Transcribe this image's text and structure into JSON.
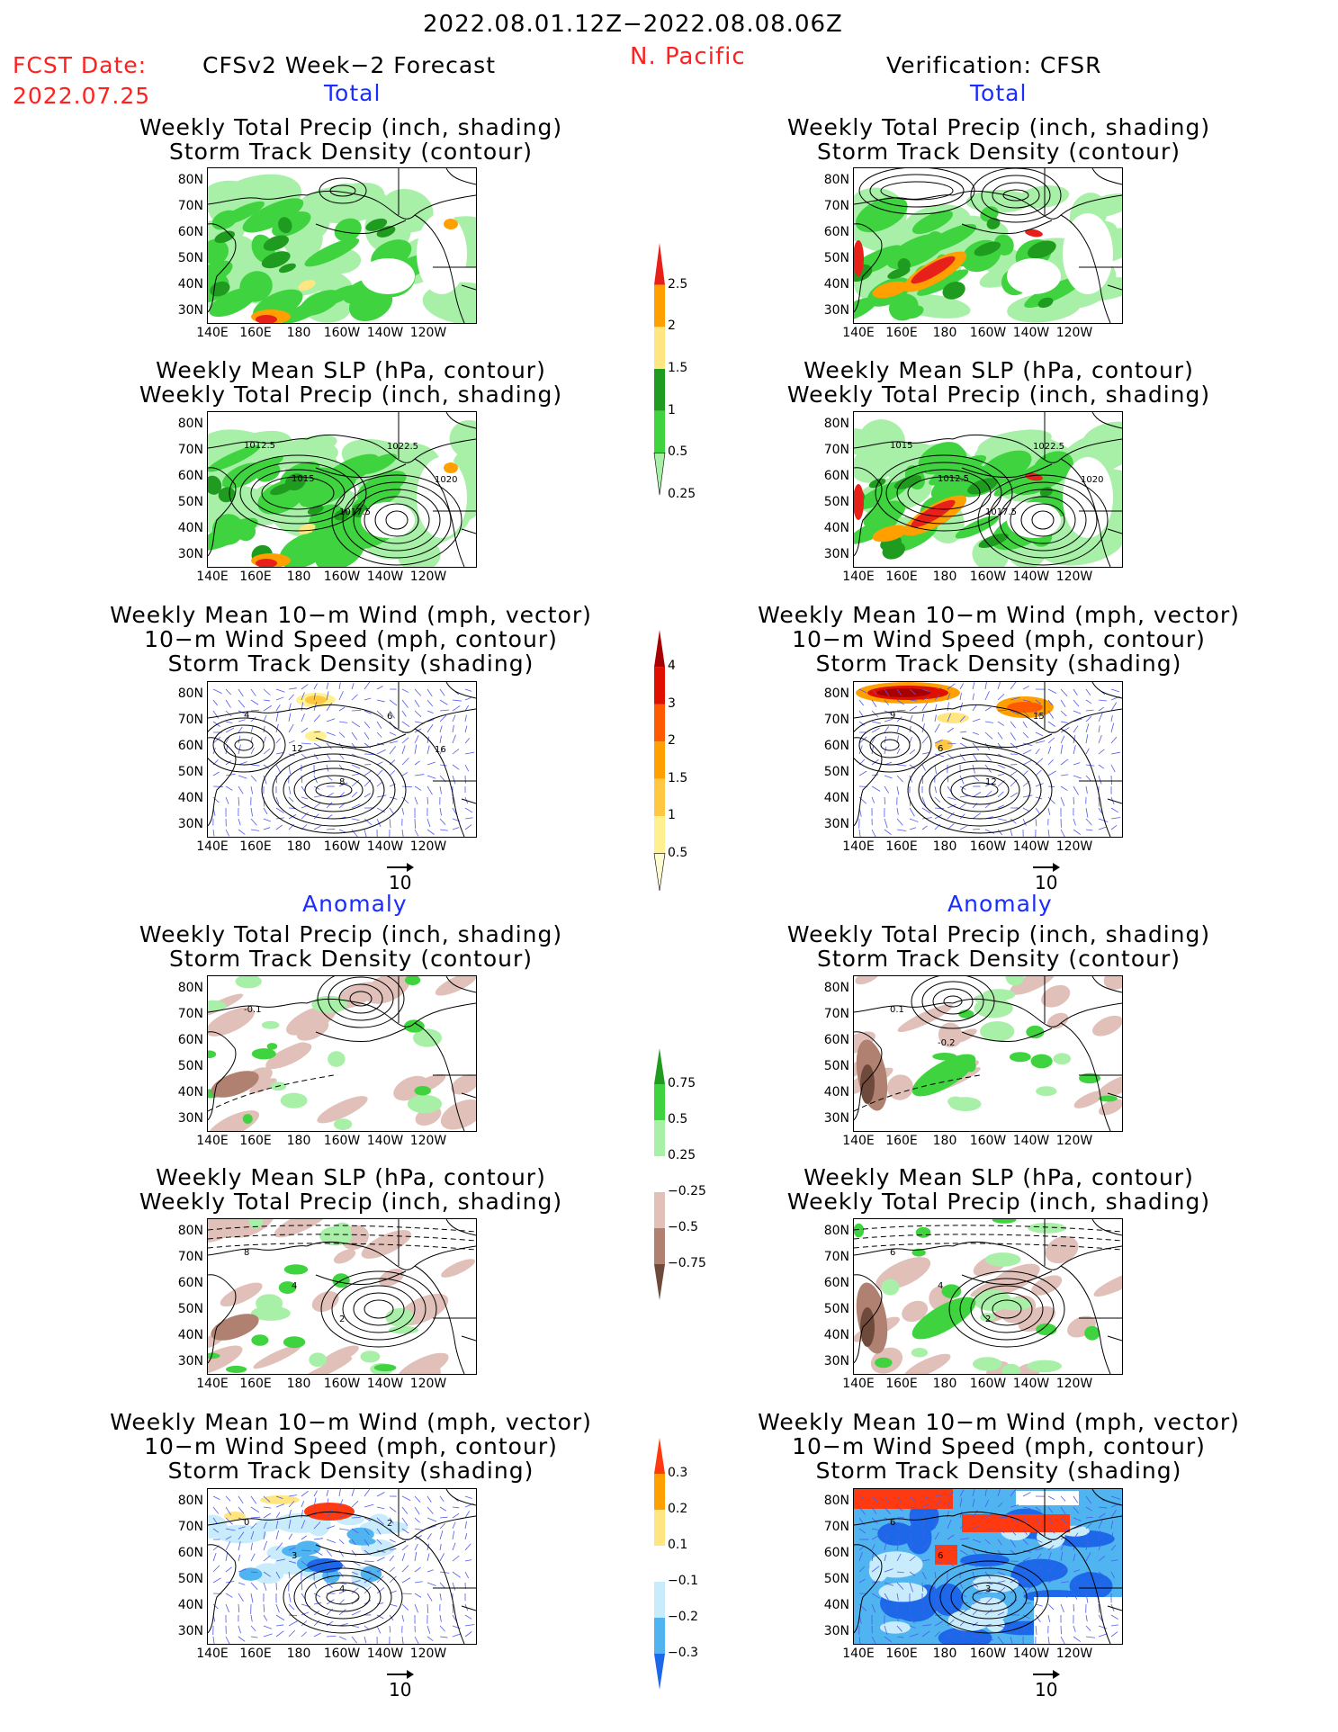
{
  "header": {
    "period": "2022.08.01.12Z−2022.08.08.06Z",
    "region": "N. Pacific",
    "fcst_label": "FCST Date:",
    "fcst_date": "2022.07.25",
    "model": "CFSv2 Week−2 Forecast",
    "verification": "Verification: CFSR"
  },
  "sections": {
    "total": "Total",
    "anomaly": "Anomaly"
  },
  "panel_titles": {
    "precip_storm": [
      "Weekly Total Precip (inch, shading)",
      "Storm Track Density (contour)"
    ],
    "slp_precip": [
      "Weekly Mean SLP (hPa, contour)",
      "Weekly Total Precip (inch, shading)"
    ],
    "wind_storm": [
      "Weekly Mean 10−m Wind (mph, vector)",
      "10−m Wind Speed (mph, contour)",
      "Storm Track Density (shading)"
    ]
  },
  "axes": {
    "lat_labels": [
      "80N",
      "70N",
      "60N",
      "50N",
      "40N",
      "30N"
    ],
    "lon_labels": [
      "140E",
      "160E",
      "180",
      "160W",
      "140W",
      "120W"
    ]
  },
  "colorbars": {
    "precip_total": {
      "labels": [
        "2.5",
        "2",
        "1.5",
        "1",
        "0.5",
        "0.25"
      ],
      "colors": [
        "#e8201a",
        "#ffa000",
        "#ffe680",
        "#1f9c1f",
        "#3fd43f",
        "#a8f0a8"
      ]
    },
    "storm_total": {
      "labels": [
        "4",
        "3",
        "2",
        "1.5",
        "1",
        "0.5"
      ],
      "colors": [
        "#a80000",
        "#e01000",
        "#ff5a00",
        "#ffa000",
        "#ffc840",
        "#fff090",
        "#fffcd0"
      ]
    },
    "precip_anom": {
      "labels": [
        "0.75",
        "0.5",
        "0.25",
        "−0.25",
        "−0.5",
        "−0.75"
      ],
      "colors": [
        "#1f9c1f",
        "#3fd43f",
        "#a8f0a8",
        "#ffffff",
        "#e0c0b8",
        "#b08070",
        "#6e4a3c"
      ]
    },
    "storm_anom": {
      "labels": [
        "0.3",
        "0.2",
        "0.1",
        "−0.1",
        "−0.2",
        "−0.3"
      ],
      "colors": [
        "#ff3a10",
        "#ffa000",
        "#ffe680",
        "#ffffff",
        "#c8ecfc",
        "#50b4f0",
        "#1c68e8"
      ]
    }
  },
  "contour_labels": {
    "slp_fcst": [
      "1012.5",
      "1015",
      "1017.5",
      "1022.5",
      "1020"
    ],
    "slp_cfsr": [
      "1015",
      "1012.5",
      "1017.5",
      "1022.5",
      "1020"
    ],
    "wind_fcst": [
      "4",
      "12",
      "8",
      "6",
      "16"
    ],
    "wind_cfsr": [
      "9",
      "6",
      "12",
      "15"
    ],
    "storm_anom_fcst": [
      "-0.1"
    ],
    "storm_anom_cfsr": [
      "0.1",
      "-0.2"
    ],
    "slp_anom_fcst": [
      "8",
      "4",
      "2"
    ],
    "slp_anom_cfsr": [
      "6",
      "4",
      "2"
    ],
    "wind_anom_fcst": [
      "0",
      "3",
      "4",
      "2"
    ],
    "wind_anom_cfsr": [
      "6",
      "6",
      "3"
    ]
  },
  "vector_ref": "10"
}
